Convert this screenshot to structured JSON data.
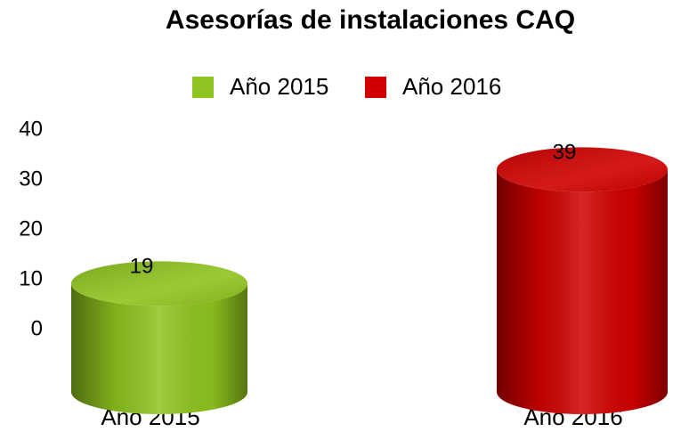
{
  "chart_data": {
    "type": "cylinder",
    "title": "Asesorías de instalaciones CAQ",
    "categories": [
      "Año 2015",
      "Año 2016"
    ],
    "series": [
      {
        "name": "Año 2015",
        "color": "#8fc31f",
        "values": [
          19,
          null
        ]
      },
      {
        "name": "Año 2016",
        "color": "#d00000",
        "values": [
          null,
          39
        ]
      }
    ],
    "ylim": [
      0,
      40
    ],
    "yticks": [
      0,
      10,
      20,
      30,
      40
    ],
    "legend": "top"
  }
}
